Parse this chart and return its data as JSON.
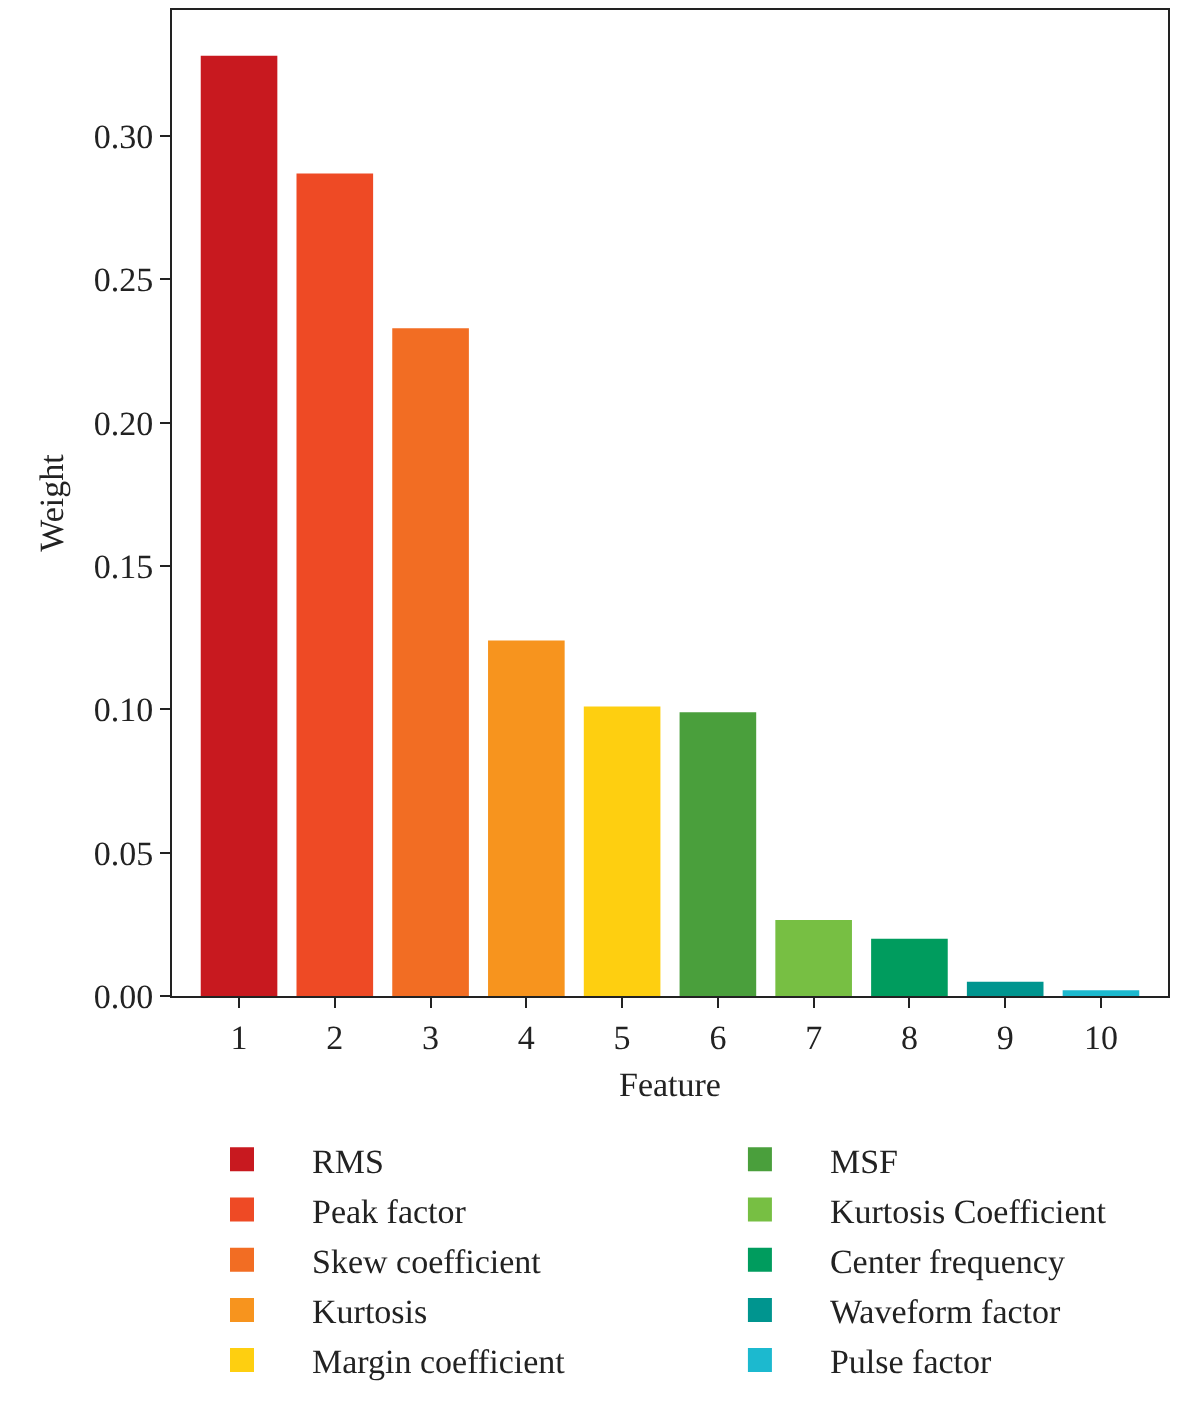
{
  "chart_data": {
    "type": "bar",
    "xlabel": "Feature",
    "ylabel": "Weight",
    "categories": [
      "1",
      "2",
      "3",
      "4",
      "5",
      "6",
      "7",
      "8",
      "9",
      "10"
    ],
    "series": [
      {
        "name": "RMS",
        "color": "#c8191f",
        "values": [
          0.328,
          null,
          null,
          null,
          null,
          null,
          null,
          null,
          null,
          null
        ]
      },
      {
        "name": "Peak factor",
        "color": "#ee4a25",
        "values": [
          null,
          0.287,
          null,
          null,
          null,
          null,
          null,
          null,
          null,
          null
        ]
      },
      {
        "name": "Skew coefficient",
        "color": "#f26d23",
        "values": [
          null,
          null,
          0.233,
          null,
          null,
          null,
          null,
          null,
          null,
          null
        ]
      },
      {
        "name": "Kurtosis",
        "color": "#f7941e",
        "values": [
          null,
          null,
          null,
          0.124,
          null,
          null,
          null,
          null,
          null,
          null
        ]
      },
      {
        "name": "Margin coefficient",
        "color": "#fecf10",
        "values": [
          null,
          null,
          null,
          null,
          0.101,
          null,
          null,
          null,
          null,
          null
        ]
      },
      {
        "name": "MSF",
        "color": "#4a9f3c",
        "values": [
          null,
          null,
          null,
          null,
          null,
          0.099,
          null,
          null,
          null,
          null
        ]
      },
      {
        "name": "Kurtosis Coefficient",
        "color": "#77bf43",
        "values": [
          null,
          null,
          null,
          null,
          null,
          null,
          0.0265,
          null,
          null,
          null
        ]
      },
      {
        "name": "Center frequency",
        "color": "#009c5e",
        "values": [
          null,
          null,
          null,
          null,
          null,
          null,
          null,
          0.02,
          null,
          null
        ]
      },
      {
        "name": "Waveform factor",
        "color": "#00958f",
        "values": [
          null,
          null,
          null,
          null,
          null,
          null,
          null,
          null,
          0.005,
          null
        ]
      },
      {
        "name": "Pulse factor",
        "color": "#1cb9cf",
        "values": [
          null,
          null,
          null,
          null,
          null,
          null,
          null,
          null,
          null,
          0.002
        ]
      }
    ],
    "ylim": [
      0,
      0.344
    ],
    "yticks": [
      {
        "value": 0,
        "label": "0.00"
      },
      0.05,
      {
        "value": 0.1,
        "label": "0.10"
      },
      0.15,
      {
        "value": 0.2,
        "label": "0.20"
      },
      0.25,
      {
        "value": 0.3,
        "label": "0.30"
      }
    ],
    "legend": "bottom"
  }
}
